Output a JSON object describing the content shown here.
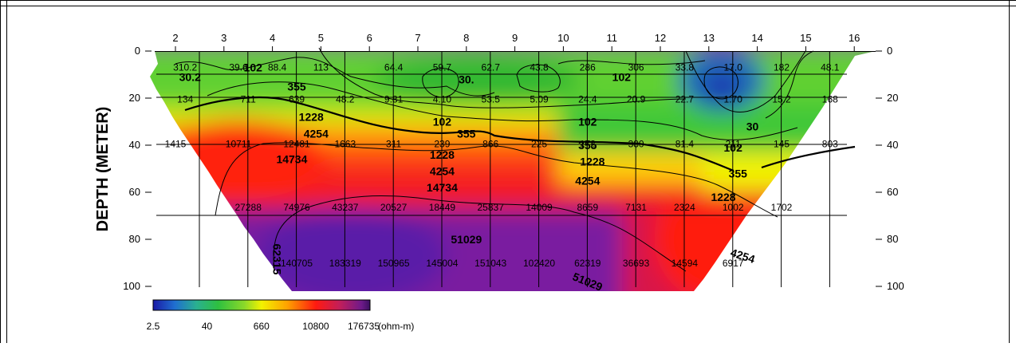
{
  "chart_data": {
    "type": "heatmap",
    "title": "",
    "ylabel": "DEPTH (METER)",
    "x_ticks": [
      "2",
      "3",
      "4",
      "5",
      "6",
      "7",
      "8",
      "9",
      "10",
      "11",
      "12",
      "13",
      "14",
      "15",
      "16"
    ],
    "y_ticks": [
      "0",
      "20",
      "40",
      "60",
      "80",
      "100"
    ],
    "y_ticks_right": [
      "0",
      "20",
      "40",
      "60",
      "80",
      "100"
    ],
    "ylim": [
      0,
      100
    ],
    "xlim": [
      2,
      16
    ],
    "colorbar": {
      "ticks": [
        "2.5",
        "40",
        "660",
        "10800",
        "176735"
      ],
      "unit": "(ohm-m)",
      "scale": "log",
      "range": [
        2.5,
        176735
      ]
    },
    "cells": [
      {
        "x": 2.2,
        "y": 7,
        "v": "310.2"
      },
      {
        "x": 3.3,
        "y": 7,
        "v": "39.6"
      },
      {
        "x": 4.1,
        "y": 7,
        "v": "88.4"
      },
      {
        "x": 5.0,
        "y": 7,
        "v": "113"
      },
      {
        "x": 6.5,
        "y": 7,
        "v": "64.4"
      },
      {
        "x": 7.5,
        "y": 7,
        "v": "59.7"
      },
      {
        "x": 8.5,
        "y": 7,
        "v": "62.7"
      },
      {
        "x": 9.5,
        "y": 7,
        "v": "43.8"
      },
      {
        "x": 10.5,
        "y": 7,
        "v": "286"
      },
      {
        "x": 11.5,
        "y": 7,
        "v": "306"
      },
      {
        "x": 12.5,
        "y": 7,
        "v": "33.8"
      },
      {
        "x": 13.5,
        "y": 7,
        "v": "17.0"
      },
      {
        "x": 14.5,
        "y": 7,
        "v": "182"
      },
      {
        "x": 15.5,
        "y": 7,
        "v": "48.1"
      },
      {
        "x": 2.2,
        "y": 20.5,
        "v": "134"
      },
      {
        "x": 3.5,
        "y": 20.5,
        "v": "711"
      },
      {
        "x": 4.5,
        "y": 20.5,
        "v": "639"
      },
      {
        "x": 5.5,
        "y": 20.5,
        "v": "48.2"
      },
      {
        "x": 6.5,
        "y": 20.5,
        "v": "9.81"
      },
      {
        "x": 7.5,
        "y": 20.5,
        "v": "4.10"
      },
      {
        "x": 8.5,
        "y": 20.5,
        "v": "53.5"
      },
      {
        "x": 9.5,
        "y": 20.5,
        "v": "5.09"
      },
      {
        "x": 10.5,
        "y": 20.5,
        "v": "24.4"
      },
      {
        "x": 11.5,
        "y": 20.5,
        "v": "20.9"
      },
      {
        "x": 12.5,
        "y": 20.5,
        "v": "22.7"
      },
      {
        "x": 13.5,
        "y": 20.5,
        "v": "1.70"
      },
      {
        "x": 14.5,
        "y": 20.5,
        "v": "15.2"
      },
      {
        "x": 15.5,
        "y": 20.5,
        "v": "168"
      },
      {
        "x": 2.0,
        "y": 39.5,
        "v": "1415"
      },
      {
        "x": 3.3,
        "y": 39.5,
        "v": "10711"
      },
      {
        "x": 4.5,
        "y": 39.5,
        "v": "12481"
      },
      {
        "x": 5.5,
        "y": 39.5,
        "v": "1663"
      },
      {
        "x": 6.5,
        "y": 39.5,
        "v": "311"
      },
      {
        "x": 7.5,
        "y": 39.5,
        "v": "239"
      },
      {
        "x": 8.5,
        "y": 39.5,
        "v": "866"
      },
      {
        "x": 9.5,
        "y": 39.5,
        "v": "225"
      },
      {
        "x": 10.5,
        "y": 39.5,
        "v": "172"
      },
      {
        "x": 11.5,
        "y": 39.5,
        "v": "380"
      },
      {
        "x": 12.5,
        "y": 39.5,
        "v": "81.4"
      },
      {
        "x": 13.5,
        "y": 39.5,
        "v": "211"
      },
      {
        "x": 14.5,
        "y": 39.5,
        "v": "145"
      },
      {
        "x": 15.5,
        "y": 39.5,
        "v": "803"
      },
      {
        "x": 3.5,
        "y": 66.5,
        "v": "27288"
      },
      {
        "x": 4.5,
        "y": 66.5,
        "v": "74976"
      },
      {
        "x": 5.5,
        "y": 66.5,
        "v": "43237"
      },
      {
        "x": 6.5,
        "y": 66.5,
        "v": "20527"
      },
      {
        "x": 7.5,
        "y": 66.5,
        "v": "18449"
      },
      {
        "x": 8.5,
        "y": 66.5,
        "v": "25837"
      },
      {
        "x": 9.5,
        "y": 66.5,
        "v": "14009"
      },
      {
        "x": 10.5,
        "y": 66.5,
        "v": "8659"
      },
      {
        "x": 11.5,
        "y": 66.5,
        "v": "7131"
      },
      {
        "x": 12.5,
        "y": 66.5,
        "v": "2324"
      },
      {
        "x": 13.5,
        "y": 66.5,
        "v": "1002"
      },
      {
        "x": 14.5,
        "y": 66.5,
        "v": "1702"
      },
      {
        "x": 4.5,
        "y": 121.5,
        "v": "140705"
      },
      {
        "x": 5.5,
        "y": 121.5,
        "v": "183319"
      },
      {
        "x": 6.5,
        "y": 121.5,
        "v": "150965"
      },
      {
        "x": 7.5,
        "y": 121.5,
        "v": "145004"
      },
      {
        "x": 8.5,
        "y": 121.5,
        "v": "151043"
      },
      {
        "x": 9.5,
        "y": 121.5,
        "v": "102420"
      },
      {
        "x": 10.5,
        "y": 121.5,
        "v": "62319"
      },
      {
        "x": 11.5,
        "y": 121.5,
        "v": "36693"
      },
      {
        "x": 12.5,
        "y": 121.5,
        "v": "14594"
      },
      {
        "x": 13.5,
        "y": 121.5,
        "v": "6917"
      }
    ],
    "contour_labels": [
      {
        "x": 2.3,
        "y": 11,
        "v": "30.2"
      },
      {
        "x": 3.6,
        "y": 7,
        "v": "102"
      },
      {
        "x": 4.5,
        "y": 15,
        "v": "355"
      },
      {
        "x": 4.8,
        "y": 28,
        "v": "1228"
      },
      {
        "x": 4.9,
        "y": 35,
        "v": "4254"
      },
      {
        "x": 4.4,
        "y": 46,
        "v": "14734"
      },
      {
        "x": 8.0,
        "y": 12,
        "v": "30."
      },
      {
        "x": 11.2,
        "y": 11,
        "v": "102"
      },
      {
        "x": 7.5,
        "y": 30,
        "v": "102"
      },
      {
        "x": 8.0,
        "y": 35,
        "v": "355"
      },
      {
        "x": 7.5,
        "y": 44,
        "v": "1228"
      },
      {
        "x": 7.5,
        "y": 51,
        "v": "4254"
      },
      {
        "x": 7.5,
        "y": 58,
        "v": "14734"
      },
      {
        "x": 10.5,
        "y": 30,
        "v": "102"
      },
      {
        "x": 10.5,
        "y": 40,
        "v": "355"
      },
      {
        "x": 10.6,
        "y": 47,
        "v": "1228"
      },
      {
        "x": 10.5,
        "y": 55,
        "v": "4254"
      },
      {
        "x": 13.9,
        "y": 32,
        "v": "30"
      },
      {
        "x": 13.5,
        "y": 41,
        "v": "102"
      },
      {
        "x": 13.6,
        "y": 52,
        "v": "355"
      },
      {
        "x": 13.3,
        "y": 62,
        "v": "1228"
      },
      {
        "x": 8.0,
        "y": 80,
        "v": "51029"
      },
      {
        "x": 10.5,
        "y": 98,
        "v": "51029"
      },
      {
        "x": 13.7,
        "y": 87,
        "v": "4254"
      },
      {
        "x": 4.1,
        "y": 107,
        "v": "62315"
      }
    ]
  }
}
